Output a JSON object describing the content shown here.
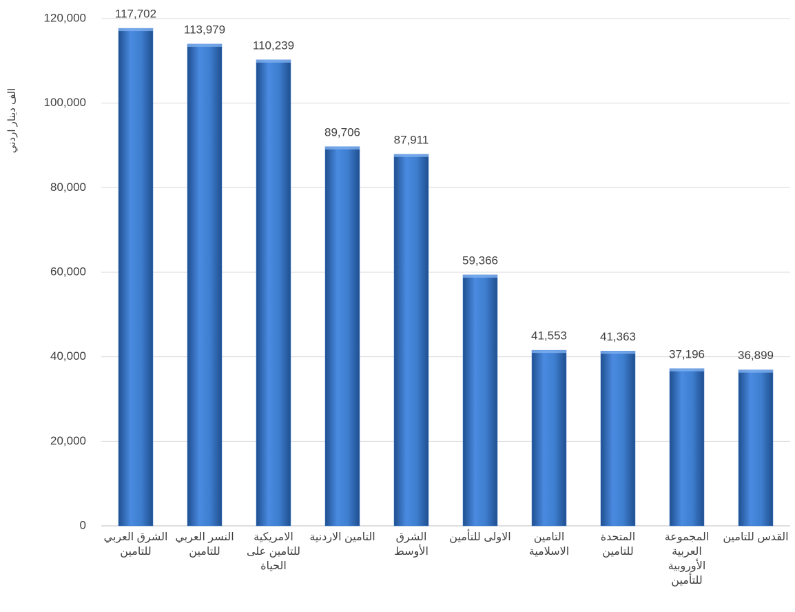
{
  "chart_data": {
    "type": "bar",
    "y_label": "الف دينار اردني",
    "categories": [
      "الشرق العربي للتامين",
      "النسر العربي للتامين",
      "الامريكية للتامين على الحياة",
      "التامين الاردنية",
      "الشرق الأوسط",
      "الاولى للتأمين",
      "التامين الاسلامية",
      "المتحدة للتامين",
      "المجموعة العربية الأوروبية للتأمين",
      "القدس للتامين"
    ],
    "values": [
      117702,
      113979,
      110239,
      89706,
      87911,
      59366,
      41553,
      41363,
      37196,
      36899
    ],
    "value_labels": [
      "117,702",
      "113,979",
      "110,239",
      "89,706",
      "87,911",
      "59,366",
      "41,553",
      "41,363",
      "37,196",
      "36,899"
    ],
    "color": "#3f7fd0",
    "ylim": [
      0,
      120000
    ],
    "yticks": [
      0,
      {
        "value": 20000,
        "label": "20,000"
      },
      {
        "value": 40000,
        "label": "40,000"
      },
      {
        "value": 60000,
        "label": "60,000"
      },
      {
        "value": 80000,
        "label": "80,000"
      },
      {
        "value": 100000,
        "label": "100,000"
      },
      {
        "value": 120000,
        "label": "120,000"
      }
    ],
    "grid": true
  }
}
